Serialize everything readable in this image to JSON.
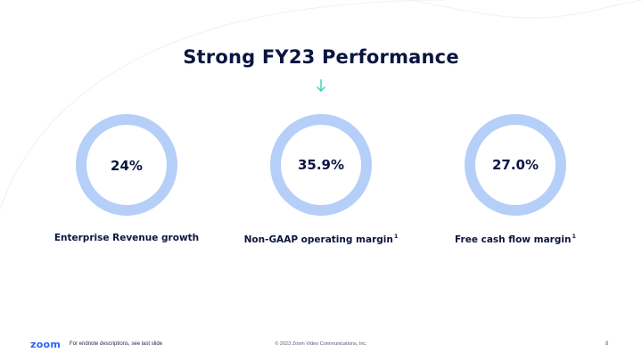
{
  "slide": {
    "title": "Strong FY23 Performance",
    "accent_color": "#b6cff8",
    "title_color": "#0b1540"
  },
  "metrics": [
    {
      "value": "24%",
      "label": "Enterprise Revenue growth",
      "footnote": ""
    },
    {
      "value": "35.9%",
      "label": "Non-GAAP operating margin",
      "footnote": "1"
    },
    {
      "value": "27.0%",
      "label": "Free cash flow margin",
      "footnote": "1"
    }
  ],
  "footer": {
    "logo": "zoom",
    "note": "For endnote descriptions, see last slide",
    "copyright": "© 2023 Zoom Video Communications, Inc.",
    "page": "8"
  }
}
